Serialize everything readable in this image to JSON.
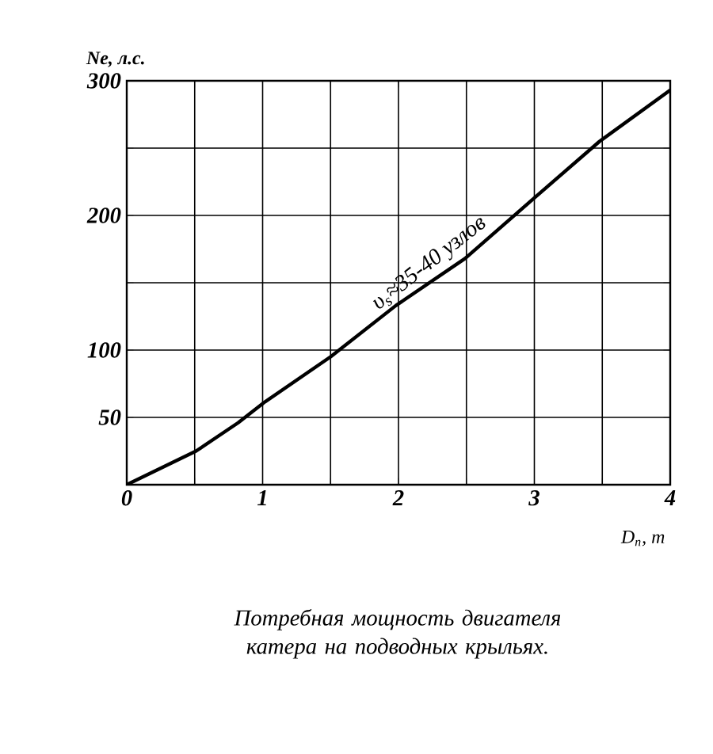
{
  "chart_data": {
    "type": "line",
    "xlabel": "D$_{п}$, т",
    "ylabel": "Ne, л.с.",
    "x": [
      0,
      0.51,
      0.82,
      1.01,
      1.5,
      1.98,
      2.49,
      3.0,
      3.48,
      4.0
    ],
    "values": [
      0,
      25,
      46,
      61,
      95,
      133,
      168,
      213,
      255,
      293
    ],
    "color": "#000000",
    "xlim": [
      0,
      4
    ],
    "ylim": [
      0,
      300
    ],
    "xticks": [
      0,
      {
        "value": 0.5,
        "label": null
      },
      1,
      {
        "value": 1.5,
        "label": null
      },
      2,
      {
        "value": 2.5,
        "label": null
      },
      3,
      {
        "value": 3.5,
        "label": null
      },
      4
    ],
    "yticks": [
      50,
      100,
      {
        "value": 150,
        "label": null
      },
      200,
      {
        "value": 250,
        "label": null
      },
      300
    ],
    "grid": true,
    "marker": "none",
    "line_style": "solid",
    "annotations": [
      {
        "text": "υ$_{s}$≈35-40 узлов",
        "x": 2.3,
        "y": 155
      },
      "Потребная мощность двигателя катера на подводных крыльях."
    ]
  }
}
